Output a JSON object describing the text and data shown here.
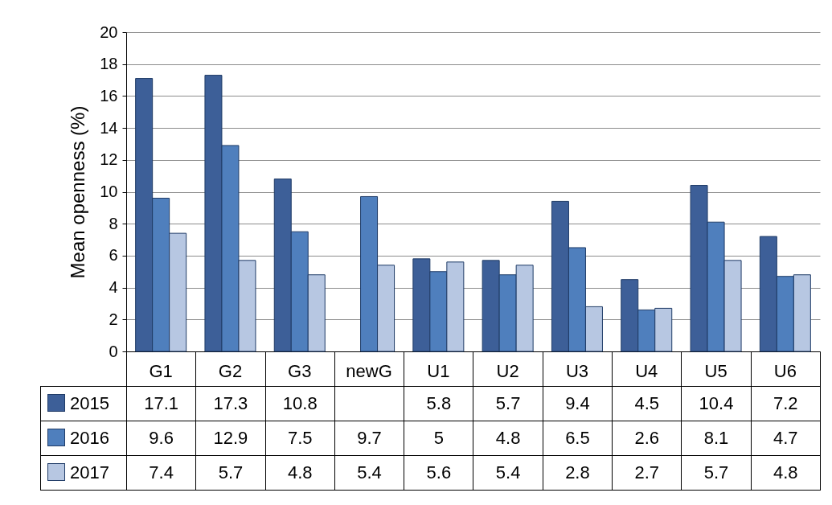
{
  "chart_data": {
    "type": "bar",
    "ylabel": "Mean openness (%)",
    "categories": [
      "G1",
      "G2",
      "G3",
      "newG",
      "U1",
      "U2",
      "U3",
      "U4",
      "U5",
      "U6"
    ],
    "series": [
      {
        "name": "2015",
        "color": "#3d5f98",
        "values": [
          17.1,
          17.3,
          10.8,
          null,
          5.8,
          5.7,
          9.4,
          4.5,
          10.4,
          7.2
        ]
      },
      {
        "name": "2016",
        "color": "#4f7fbd",
        "values": [
          9.6,
          12.9,
          7.5,
          9.7,
          5,
          4.8,
          6.5,
          2.6,
          8.1,
          4.7
        ]
      },
      {
        "name": "2017",
        "color": "#b7c7e2",
        "values": [
          7.4,
          5.7,
          4.8,
          5.4,
          5.6,
          5.4,
          2.8,
          2.7,
          5.7,
          4.8
        ]
      }
    ],
    "ylim": [
      0,
      20
    ],
    "yticks": [
      0,
      2,
      4,
      6,
      8,
      10,
      12,
      14,
      16,
      18,
      20
    ],
    "grid": "y",
    "data_labels": true,
    "legend": "bottom"
  }
}
